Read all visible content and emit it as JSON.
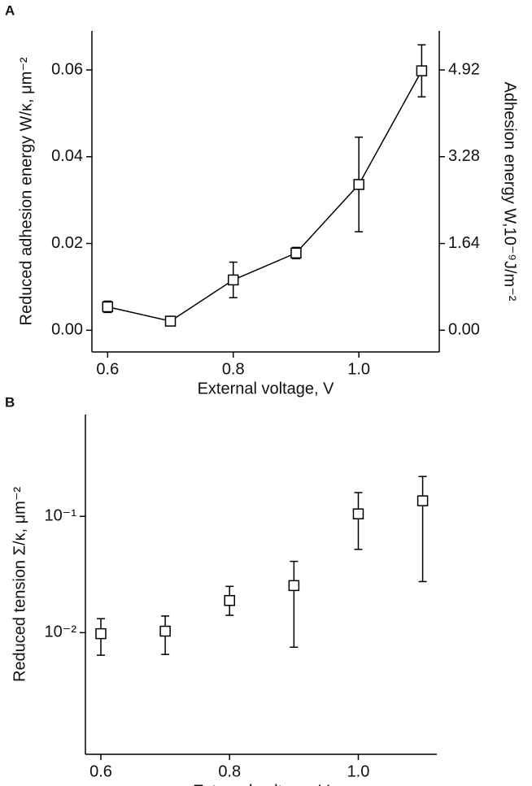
{
  "chart_data": [
    {
      "type": "scatter",
      "panel": "A",
      "xlabel": "External voltage, V",
      "ylabel": "Reduced adhesion energy  W/κ, μm⁻²",
      "y2label": "Adhesion energy  W,10⁻⁹J/m⁻²",
      "x": [
        0.6,
        0.7,
        0.8,
        0.9,
        1.0,
        1.1
      ],
      "values": [
        0.0054,
        0.0021,
        0.0116,
        0.0178,
        0.0336,
        0.0598
      ],
      "errors": [
        0.0013,
        0.0005,
        0.0041,
        0.0013,
        0.0109,
        0.006
      ],
      "color": "#000000",
      "line": true,
      "xlim": [
        0.575,
        1.128
      ],
      "xticks": [
        0.6,
        0.8,
        {
          "value": 1,
          "label": "1.0"
        }
      ],
      "ylim": [
        -0.005,
        0.069
      ],
      "yticks": [
        {
          "value": 0,
          "label": "0.00"
        },
        0.02,
        0.04,
        0.06
      ],
      "y2lim": [
        -0.41,
        5.658
      ],
      "y2ticks": [
        {
          "value": 0,
          "label": "0.00"
        },
        1.64,
        3.28,
        4.92
      ]
    },
    {
      "type": "scatter",
      "panel": "B",
      "xlabel": "External voltage, V",
      "ylabel": "Reduced tension Σ/κ, μm⁻²",
      "x": [
        0.6,
        0.7,
        0.8,
        0.9,
        1.0,
        1.1
      ],
      "values": [
        0.0098,
        0.0103,
        0.0189,
        0.0254,
        0.105,
        0.136
      ],
      "lower": [
        0.0064,
        0.0065,
        0.0141,
        0.0075,
        0.052,
        0.0275
      ],
      "upper": [
        0.0132,
        0.0139,
        0.025,
        0.041,
        0.16,
        0.22
      ],
      "color": "#000000",
      "line": false,
      "log_y": true,
      "xlim": [
        0.576,
        1.122
      ],
      "xticks": [
        0.6,
        0.8,
        {
          "value": 1,
          "label": "1.0"
        }
      ],
      "ylim": [
        0.0009,
        0.75
      ],
      "yticks": [
        {
          "value": 0.01,
          "label": "10⁻²"
        },
        {
          "value": 0.1,
          "label": "10⁻¹"
        }
      ]
    }
  ]
}
